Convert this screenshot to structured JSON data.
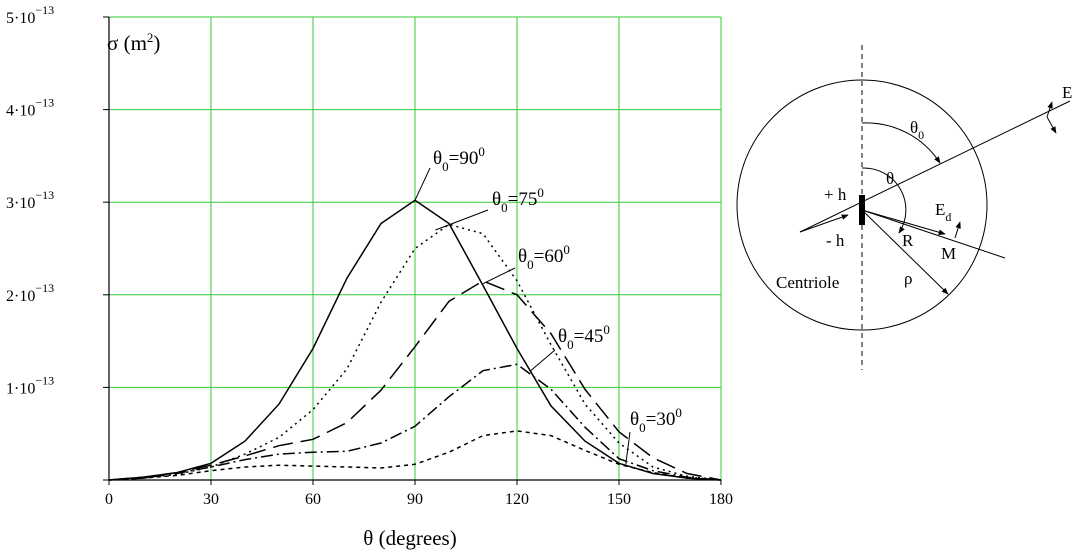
{
  "chart_data": {
    "type": "line",
    "ylabel_symbol": "σ (m",
    "ylabel_sup": "2",
    "ylabel_close": ")",
    "xlabel": "θ (degrees)",
    "xlim": [
      0,
      180
    ],
    "ylim": [
      0,
      5e-13
    ],
    "grid": true,
    "grid_color": "#33cc33",
    "x_ticks": [
      "0",
      "30",
      "60",
      "90",
      "120",
      "150",
      "180"
    ],
    "y_ticks": [
      {
        "value": 0,
        "mant": "",
        "exp": ""
      },
      {
        "value": 1e-13,
        "mant": "1·10",
        "exp": "−13"
      },
      {
        "value": 2e-13,
        "mant": "2·10",
        "exp": "−13"
      },
      {
        "value": 3e-13,
        "mant": "3·10",
        "exp": "−13"
      },
      {
        "value": 4e-13,
        "mant": "4·10",
        "exp": "−13"
      },
      {
        "value": 5e-13,
        "mant": "5·10",
        "exp": "−13"
      }
    ],
    "x": [
      0,
      10,
      20,
      30,
      40,
      50,
      60,
      70,
      80,
      90,
      100,
      110,
      120,
      130,
      140,
      150,
      160,
      170,
      180
    ],
    "series": [
      {
        "label_main": "θ",
        "label_sub": "0",
        "label_val": "=90",
        "label_sup": "0",
        "dash": "",
        "values": [
          0,
          3e-15,
          8e-15,
          1.8e-14,
          4.2e-14,
          8.2e-14,
          1.42e-13,
          2.18e-13,
          2.77e-13,
          3.02e-13,
          2.77e-13,
          2.1e-13,
          1.42e-13,
          8e-14,
          4.2e-14,
          1.8e-14,
          7e-15,
          2e-15,
          0
        ]
      },
      {
        "label_main": "θ",
        "label_sub": "0",
        "label_val": "=75",
        "label_sup": "0",
        "dash": "2,4",
        "values": [
          0,
          2e-15,
          6e-15,
          1.4e-14,
          2.8e-14,
          4.6e-14,
          7.6e-14,
          1.2e-13,
          1.92e-13,
          2.5e-13,
          2.76e-13,
          2.66e-13,
          2.15e-13,
          1.46e-13,
          8.2e-14,
          4e-14,
          1.4e-14,
          4e-15,
          0
        ]
      },
      {
        "label_main": "θ",
        "label_sub": "0",
        "label_val": "=60",
        "label_sup": "0",
        "dash": "20,8",
        "values": [
          0,
          3e-15,
          8e-15,
          1.6e-14,
          2.6e-14,
          3.7e-14,
          4.4e-14,
          6.2e-14,
          9.7e-14,
          1.44e-13,
          1.93e-13,
          2.15e-13,
          2e-13,
          1.58e-13,
          9.8e-14,
          5.2e-14,
          2.4e-14,
          7e-15,
          0
        ]
      },
      {
        "label_main": "θ",
        "label_sub": "0",
        "label_val": "=45",
        "label_sup": "0",
        "dash": "12,4,2,4",
        "values": [
          0,
          2e-15,
          7e-15,
          1.4e-14,
          2.2e-14,
          2.8e-14,
          3e-14,
          3.1e-14,
          4e-14,
          5.8e-14,
          9e-14,
          1.18e-13,
          1.25e-13,
          9.8e-14,
          5.7e-14,
          2.3e-14,
          1e-14,
          3e-15,
          0
        ]
      },
      {
        "label_main": "θ",
        "label_sub": "0",
        "label_val": "=30",
        "label_sup": "0",
        "dash": "4,4",
        "values": [
          0,
          2e-15,
          5e-15,
          1e-14,
          1.4e-14,
          1.6e-14,
          1.5e-14,
          1.4e-14,
          1.3e-14,
          1.7e-14,
          3e-14,
          4.8e-14,
          5.3e-14,
          4.8e-14,
          3.2e-14,
          1.7e-14,
          8e-15,
          2e-15,
          0
        ]
      }
    ]
  },
  "diagram": {
    "label_E": "E",
    "label_theta0_main": "θ",
    "label_theta0_sub": "0",
    "label_theta": "θ",
    "label_plus_h": "+ h",
    "label_minus_h": "- h",
    "label_Ed_main": "E",
    "label_Ed_sub": "d",
    "label_R": "R",
    "label_M": "M",
    "label_centriole": "Centriole",
    "label_rho": "ρ"
  }
}
